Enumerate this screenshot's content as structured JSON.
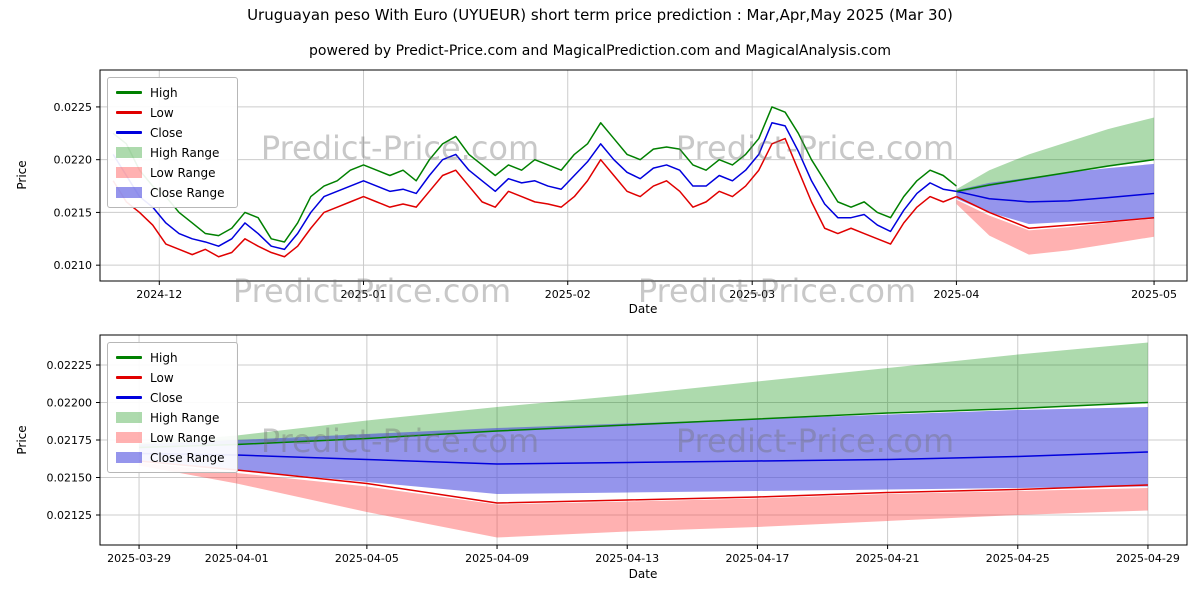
{
  "title": "Uruguayan peso With Euro (UYUEUR) short term price prediction : Mar,Apr,May 2025 (Mar 30)",
  "subtitle": "powered by Predict-Price.com and MagicalPrediction.com and MagicalAnalysis.com",
  "watermark": {
    "text": "Predict-Price.com"
  },
  "legend": {
    "items": [
      {
        "label": "High",
        "type": "line",
        "color": "#008000"
      },
      {
        "label": "Low",
        "type": "line",
        "color": "#e00000"
      },
      {
        "label": "Close",
        "type": "line",
        "color": "#0000dd"
      },
      {
        "label": "High Range",
        "type": "patch",
        "color": "rgba(0,140,0,0.32)"
      },
      {
        "label": "Low Range",
        "type": "patch",
        "color": "rgba(255,70,70,0.42)"
      },
      {
        "label": "Close Range",
        "type": "patch",
        "color": "rgba(72,72,222,0.58)"
      }
    ]
  },
  "chart_data": [
    {
      "type": "line",
      "xlabel": "Date",
      "ylabel": "Price",
      "xlim": [
        -2,
        163
      ],
      "ylim": [
        0.02085,
        0.02285
      ],
      "xticks": {
        "values": [
          7,
          38,
          69,
          97,
          128,
          158
        ],
        "labels": [
          "2024-12",
          "2025-01",
          "2025-02",
          "2025-03",
          "2025-04",
          "2025-05"
        ]
      },
      "yticks": {
        "values": [
          0.021,
          0.0215,
          0.022,
          0.0225
        ],
        "labels": [
          "0.0210",
          "0.0215",
          "0.0220",
          "0.0225"
        ]
      },
      "series": [
        {
          "name": "high",
          "label": "High",
          "color": "#008000",
          "x": [
            0,
            2,
            4,
            6,
            8,
            10,
            12,
            14,
            16,
            18,
            20,
            22,
            24,
            26,
            28,
            30,
            32,
            34,
            36,
            38,
            40,
            42,
            44,
            46,
            48,
            50,
            52,
            54,
            56,
            58,
            60,
            62,
            64,
            66,
            68,
            70,
            72,
            74,
            76,
            78,
            80,
            82,
            84,
            86,
            88,
            90,
            92,
            94,
            96,
            98,
            100,
            102,
            104,
            106,
            108,
            110,
            112,
            114,
            116,
            118,
            120,
            122,
            124,
            126,
            128
          ],
          "y": [
            0.02225,
            0.02215,
            0.0219,
            0.02175,
            0.02165,
            0.0215,
            0.0214,
            0.0213,
            0.02128,
            0.02135,
            0.0215,
            0.02145,
            0.02125,
            0.02122,
            0.0214,
            0.02165,
            0.02175,
            0.0218,
            0.0219,
            0.02195,
            0.0219,
            0.02185,
            0.0219,
            0.0218,
            0.022,
            0.02215,
            0.02222,
            0.02205,
            0.02195,
            0.02185,
            0.02195,
            0.0219,
            0.022,
            0.02195,
            0.0219,
            0.02205,
            0.02215,
            0.02235,
            0.0222,
            0.02205,
            0.022,
            0.0221,
            0.02212,
            0.0221,
            0.02195,
            0.0219,
            0.022,
            0.02195,
            0.02205,
            0.0222,
            0.0225,
            0.02245,
            0.02225,
            0.022,
            0.0218,
            0.0216,
            0.02155,
            0.0216,
            0.0215,
            0.02145,
            0.02165,
            0.0218,
            0.0219,
            0.02185,
            0.02175
          ]
        },
        {
          "name": "low",
          "label": "Low",
          "color": "#e00000",
          "x": [
            0,
            2,
            4,
            6,
            8,
            10,
            12,
            14,
            16,
            18,
            20,
            22,
            24,
            26,
            28,
            30,
            32,
            34,
            36,
            38,
            40,
            42,
            44,
            46,
            48,
            50,
            52,
            54,
            56,
            58,
            60,
            62,
            64,
            66,
            68,
            70,
            72,
            74,
            76,
            78,
            80,
            82,
            84,
            86,
            88,
            90,
            92,
            94,
            96,
            98,
            100,
            102,
            104,
            106,
            108,
            110,
            112,
            114,
            116,
            118,
            120,
            122,
            124,
            126,
            128
          ],
          "y": [
            0.0218,
            0.0216,
            0.0215,
            0.02138,
            0.0212,
            0.02115,
            0.0211,
            0.02115,
            0.02108,
            0.02112,
            0.02125,
            0.02118,
            0.02112,
            0.02108,
            0.02118,
            0.02135,
            0.0215,
            0.02155,
            0.0216,
            0.02165,
            0.0216,
            0.02155,
            0.02158,
            0.02155,
            0.0217,
            0.02185,
            0.0219,
            0.02175,
            0.0216,
            0.02155,
            0.0217,
            0.02165,
            0.0216,
            0.02158,
            0.02155,
            0.02165,
            0.0218,
            0.022,
            0.02185,
            0.0217,
            0.02165,
            0.02175,
            0.0218,
            0.0217,
            0.02155,
            0.0216,
            0.0217,
            0.02165,
            0.02175,
            0.0219,
            0.02215,
            0.0222,
            0.0219,
            0.0216,
            0.02135,
            0.0213,
            0.02135,
            0.0213,
            0.02125,
            0.0212,
            0.0214,
            0.02155,
            0.02165,
            0.0216,
            0.02165
          ]
        },
        {
          "name": "close",
          "label": "Close",
          "color": "#0000dd",
          "x": [
            0,
            2,
            4,
            6,
            8,
            10,
            12,
            14,
            16,
            18,
            20,
            22,
            24,
            26,
            28,
            30,
            32,
            34,
            36,
            38,
            40,
            42,
            44,
            46,
            48,
            50,
            52,
            54,
            56,
            58,
            60,
            62,
            64,
            66,
            68,
            70,
            72,
            74,
            76,
            78,
            80,
            82,
            84,
            86,
            88,
            90,
            92,
            94,
            96,
            98,
            100,
            102,
            104,
            106,
            108,
            110,
            112,
            114,
            116,
            118,
            120,
            122,
            124,
            126,
            128,
            133,
            139,
            145,
            151,
            158
          ],
          "y": [
            0.02205,
            0.02185,
            0.02165,
            0.02155,
            0.0214,
            0.0213,
            0.02125,
            0.02122,
            0.02118,
            0.02125,
            0.0214,
            0.0213,
            0.02118,
            0.02115,
            0.0213,
            0.0215,
            0.02165,
            0.0217,
            0.02175,
            0.0218,
            0.02175,
            0.0217,
            0.02172,
            0.02168,
            0.02185,
            0.022,
            0.02205,
            0.0219,
            0.0218,
            0.0217,
            0.02182,
            0.02178,
            0.0218,
            0.02175,
            0.02172,
            0.02185,
            0.02198,
            0.02215,
            0.022,
            0.02188,
            0.02182,
            0.02192,
            0.02195,
            0.0219,
            0.02175,
            0.02175,
            0.02185,
            0.0218,
            0.0219,
            0.02205,
            0.02235,
            0.02232,
            0.02208,
            0.0218,
            0.02158,
            0.02145,
            0.02145,
            0.02148,
            0.02138,
            0.02132,
            0.02152,
            0.02168,
            0.02178,
            0.02172,
            0.0217,
            0.02163,
            0.0216,
            0.02161,
            0.02164,
            0.02168
          ]
        },
        {
          "name": "high-forecast",
          "label": "High",
          "color": "#008000",
          "x": [
            128,
            133,
            139,
            145,
            151,
            158
          ],
          "y": [
            0.0217,
            0.02176,
            0.02182,
            0.02188,
            0.02194,
            0.022
          ]
        },
        {
          "name": "low-forecast",
          "label": "Low",
          "color": "#e00000",
          "x": [
            128,
            133,
            139,
            145,
            151,
            158
          ],
          "y": [
            0.02165,
            0.0215,
            0.02135,
            0.02138,
            0.02141,
            0.02145
          ]
        }
      ],
      "bands": [
        {
          "name": "high-range",
          "label": "High Range",
          "color": "rgba(0,140,0,0.32)",
          "x": [
            128,
            133,
            139,
            145,
            151,
            158
          ],
          "upper": [
            0.02172,
            0.0219,
            0.02205,
            0.02217,
            0.02229,
            0.0224
          ],
          "lower": [
            0.02168,
            0.02175,
            0.02181,
            0.02187,
            0.02193,
            0.022
          ]
        },
        {
          "name": "low-range",
          "label": "Low Range",
          "color": "rgba(255,70,70,0.42)",
          "x": [
            128,
            133,
            139,
            145,
            151,
            158
          ],
          "upper": [
            0.02162,
            0.02147,
            0.02133,
            0.02136,
            0.0214,
            0.02144
          ],
          "lower": [
            0.02158,
            0.02128,
            0.0211,
            0.02114,
            0.0212,
            0.02127
          ]
        },
        {
          "name": "close-range",
          "label": "Close Range",
          "color": "rgba(72,72,222,0.58)",
          "x": [
            128,
            133,
            139,
            145,
            151,
            158
          ],
          "upper": [
            0.02171,
            0.02178,
            0.02183,
            0.02188,
            0.02192,
            0.02196
          ],
          "lower": [
            0.02163,
            0.0215,
            0.02139,
            0.02141,
            0.02142,
            0.02144
          ]
        }
      ]
    },
    {
      "type": "line",
      "xlabel": "Date",
      "ylabel": "Price",
      "xlim": [
        -1.2,
        32.2
      ],
      "ylim": [
        0.02105,
        0.02245
      ],
      "xticks": {
        "values": [
          0,
          3,
          7,
          11,
          15,
          19,
          23,
          27,
          31
        ],
        "labels": [
          "2025-03-29",
          "2025-04-01",
          "2025-04-05",
          "2025-04-09",
          "2025-04-13",
          "2025-04-17",
          "2025-04-21",
          "2025-04-25",
          "2025-04-29"
        ]
      },
      "yticks": {
        "values": [
          0.02125,
          0.0215,
          0.02175,
          0.022,
          0.02225
        ],
        "labels": [
          "0.02125",
          "0.02150",
          "0.02175",
          "0.02200",
          "0.02225"
        ]
      },
      "series": [
        {
          "name": "high",
          "label": "High",
          "color": "#008000",
          "x": [
            0,
            3,
            7,
            11,
            15,
            19,
            23,
            27,
            31
          ],
          "y": [
            0.0217,
            0.02172,
            0.02176,
            0.02181,
            0.02185,
            0.02189,
            0.02193,
            0.02196,
            0.022
          ]
        },
        {
          "name": "low",
          "label": "Low",
          "color": "#e00000",
          "x": [
            0,
            3,
            7,
            11,
            15,
            19,
            23,
            27,
            31
          ],
          "y": [
            0.02161,
            0.02155,
            0.02146,
            0.02133,
            0.02135,
            0.02137,
            0.0214,
            0.02142,
            0.02145
          ]
        },
        {
          "name": "close",
          "label": "Close",
          "color": "#0000dd",
          "x": [
            0,
            3,
            7,
            11,
            15,
            19,
            23,
            27,
            31
          ],
          "y": [
            0.02166,
            0.02165,
            0.02162,
            0.02159,
            0.0216,
            0.02161,
            0.02162,
            0.02164,
            0.02167
          ]
        }
      ],
      "bands": [
        {
          "name": "high-range",
          "label": "High Range",
          "color": "rgba(0,140,0,0.32)",
          "x": [
            0,
            3,
            7,
            11,
            15,
            19,
            23,
            27,
            31
          ],
          "upper": [
            0.02173,
            0.02178,
            0.02188,
            0.02197,
            0.02205,
            0.02214,
            0.02223,
            0.02232,
            0.0224
          ],
          "lower": [
            0.0217,
            0.02172,
            0.02176,
            0.02181,
            0.02185,
            0.02189,
            0.02193,
            0.02196,
            0.022
          ]
        },
        {
          "name": "low-range",
          "label": "Low Range",
          "color": "rgba(255,70,70,0.42)",
          "x": [
            0,
            3,
            7,
            11,
            15,
            19,
            23,
            27,
            31
          ],
          "upper": [
            0.0216,
            0.02153,
            0.02144,
            0.02132,
            0.02134,
            0.02136,
            0.02139,
            0.02141,
            0.02143
          ],
          "lower": [
            0.02158,
            0.02146,
            0.02127,
            0.0211,
            0.02114,
            0.02117,
            0.02121,
            0.02125,
            0.02128
          ]
        },
        {
          "name": "close-range",
          "label": "Close Range",
          "color": "rgba(72,72,222,0.58)",
          "x": [
            0,
            3,
            7,
            11,
            15,
            19,
            23,
            27,
            31
          ],
          "upper": [
            0.02172,
            0.02175,
            0.02179,
            0.02183,
            0.02186,
            0.02189,
            0.02192,
            0.02195,
            0.02197
          ],
          "lower": [
            0.02161,
            0.02155,
            0.02147,
            0.02139,
            0.0214,
            0.02141,
            0.02142,
            0.02143,
            0.02144
          ]
        }
      ]
    }
  ]
}
